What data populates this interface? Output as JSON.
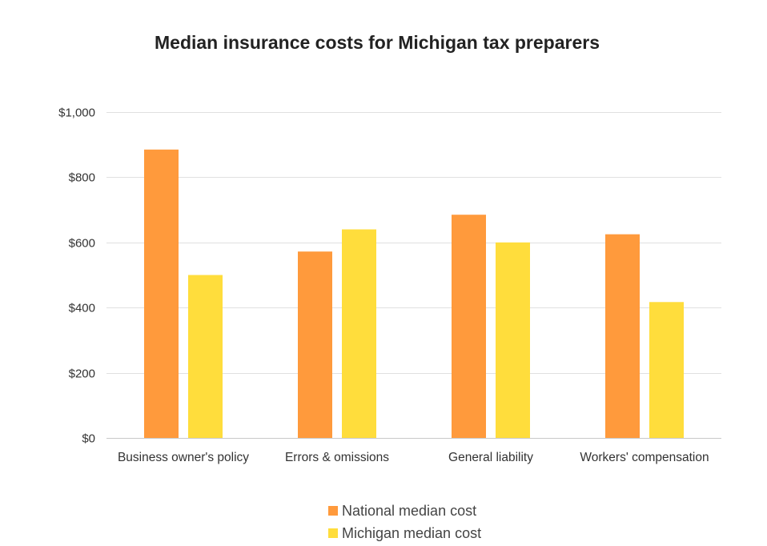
{
  "chart_data": {
    "type": "bar",
    "title": "Median insurance costs for Michigan tax preparers",
    "xlabel": "",
    "ylabel": "",
    "categories": [
      "Business owner's policy",
      "Errors & omissions",
      "General liability",
      "Workers' compensation"
    ],
    "series": [
      {
        "name": "National median cost",
        "color": "#FF9A3C",
        "values": [
          885,
          572,
          685,
          625
        ]
      },
      {
        "name": "Michigan median cost",
        "color": "#FFDD3C",
        "values": [
          500,
          640,
          600,
          417
        ]
      }
    ],
    "ylim": [
      0,
      1000
    ],
    "yticks": [
      0,
      200,
      400,
      600,
      800,
      1000
    ],
    "ytick_labels": [
      "$0",
      "$200",
      "$400",
      "$600",
      "$800",
      "$1,000"
    ],
    "grid": true,
    "legend_position": "bottom"
  }
}
